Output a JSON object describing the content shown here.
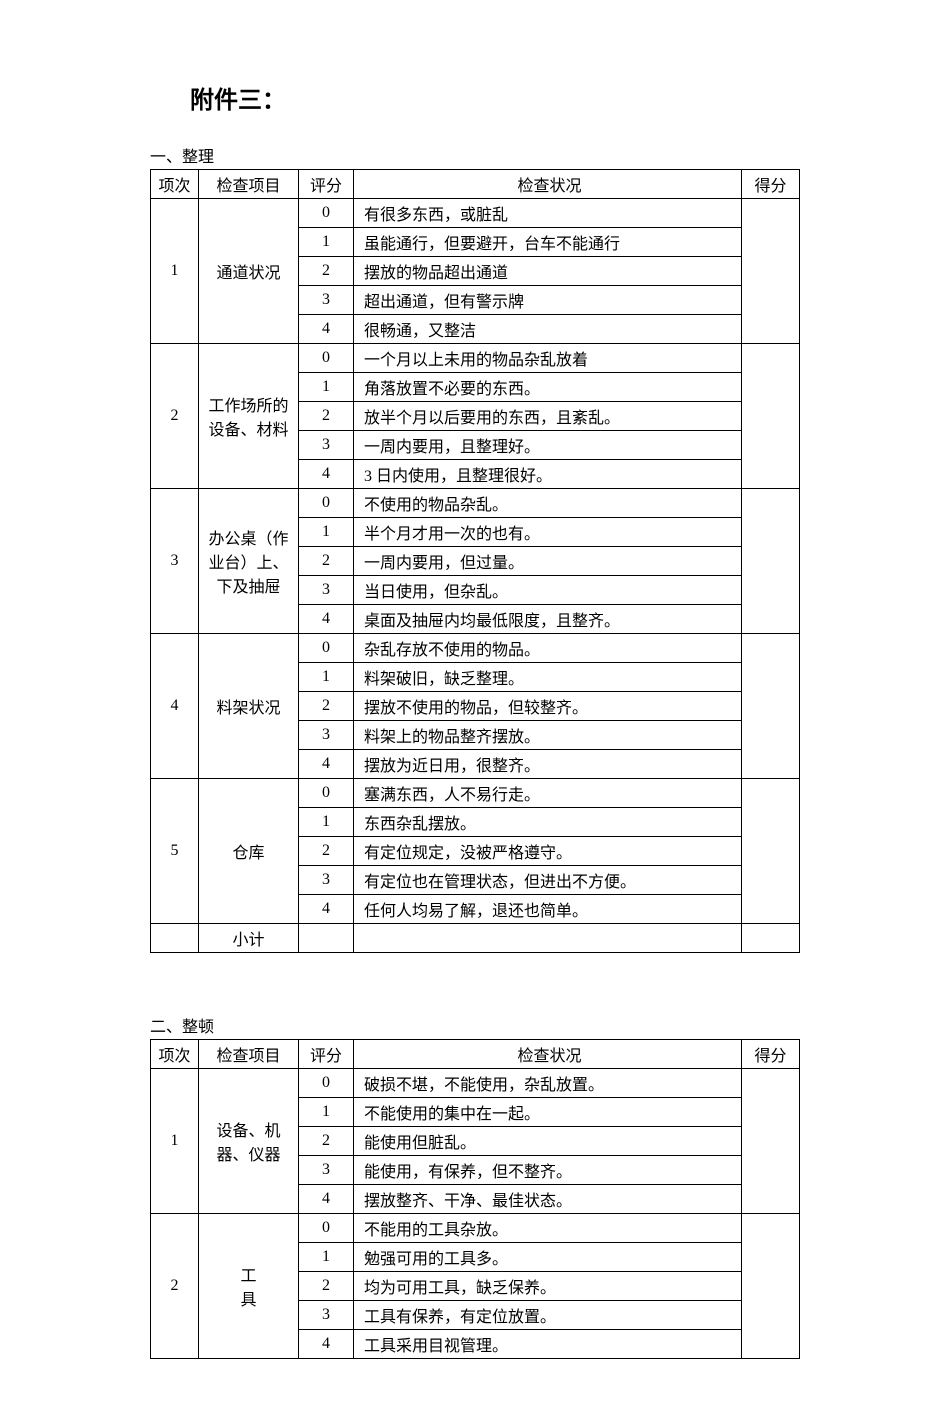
{
  "title": "附件三：",
  "headers": {
    "idx": "项次",
    "item": "检查项目",
    "score": "评分",
    "status": "检查状况",
    "result": "得分"
  },
  "subtotal_label": "小计",
  "section1": {
    "label": "一、整理",
    "rows": [
      {
        "idx": "1",
        "item": "通道状况",
        "entries": [
          {
            "s": "0",
            "t": "有很多东西，或脏乱"
          },
          {
            "s": "1",
            "t": "虽能通行，但要避开，台车不能通行"
          },
          {
            "s": "2",
            "t": "摆放的物品超出通道"
          },
          {
            "s": "3",
            "t": "超出通道，但有警示牌"
          },
          {
            "s": "4",
            "t": "很畅通，又整洁"
          }
        ]
      },
      {
        "idx": "2",
        "item": "工作场所的设备、材料",
        "entries": [
          {
            "s": "0",
            "t": "一个月以上未用的物品杂乱放着"
          },
          {
            "s": "1",
            "t": "角落放置不必要的东西。"
          },
          {
            "s": "2",
            "t": "放半个月以后要用的东西，且紊乱。"
          },
          {
            "s": "3",
            "t": "一周内要用，且整理好。"
          },
          {
            "s": "4",
            "t": "3 日内使用，且整理很好。"
          }
        ]
      },
      {
        "idx": "3",
        "item": "办公桌（作业台）上、下及抽屉",
        "entries": [
          {
            "s": "0",
            "t": "不使用的物品杂乱。"
          },
          {
            "s": "1",
            "t": "半个月才用一次的也有。"
          },
          {
            "s": "2",
            "t": "一周内要用，但过量。"
          },
          {
            "s": "3",
            "t": "当日使用，但杂乱。"
          },
          {
            "s": "4",
            "t": "桌面及抽屉内均最低限度，且整齐。"
          }
        ]
      },
      {
        "idx": "4",
        "item": "料架状况",
        "entries": [
          {
            "s": "0",
            "t": "杂乱存放不使用的物品。"
          },
          {
            "s": "1",
            "t": "料架破旧，缺乏整理。"
          },
          {
            "s": "2",
            "t": "摆放不使用的物品，但较整齐。"
          },
          {
            "s": "3",
            "t": "料架上的物品整齐摆放。"
          },
          {
            "s": "4",
            "t": "摆放为近日用，很整齐。"
          }
        ]
      },
      {
        "idx": "5",
        "item": "仓库",
        "entries": [
          {
            "s": "0",
            "t": "塞满东西，人不易行走。"
          },
          {
            "s": "1",
            "t": "东西杂乱摆放。"
          },
          {
            "s": "2",
            "t": "有定位规定，没被严格遵守。"
          },
          {
            "s": "3",
            "t": "有定位也在管理状态，但进出不方便。"
          },
          {
            "s": "4",
            "t": "任何人均易了解，退还也简单。"
          }
        ]
      }
    ]
  },
  "section2": {
    "label": "二、整顿",
    "rows": [
      {
        "idx": "1",
        "item": "设备、机器、仪器",
        "entries": [
          {
            "s": "0",
            "t": "破损不堪，不能使用，杂乱放置。"
          },
          {
            "s": "1",
            "t": "不能使用的集中在一起。"
          },
          {
            "s": "2",
            "t": "能使用但脏乱。"
          },
          {
            "s": "3",
            "t": "能使用，有保养，但不整齐。"
          },
          {
            "s": "4",
            "t": "摆放整齐、干净、最佳状态。"
          }
        ]
      },
      {
        "idx": "2",
        "item": "工具",
        "item_split": [
          "工",
          "具"
        ],
        "entries": [
          {
            "s": "0",
            "t": "不能用的工具杂放。"
          },
          {
            "s": "1",
            "t": "勉强可用的工具多。"
          },
          {
            "s": "2",
            "t": "均为可用工具，缺乏保养。"
          },
          {
            "s": "3",
            "t": "工具有保养，有定位放置。"
          },
          {
            "s": "4",
            "t": "工具采用目视管理。"
          }
        ]
      }
    ]
  }
}
